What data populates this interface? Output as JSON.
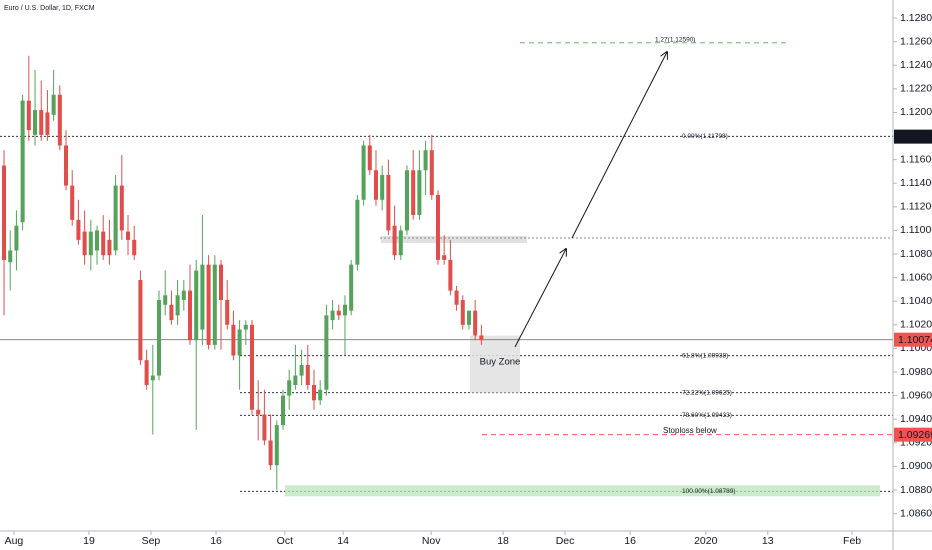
{
  "chart_data": {
    "type": "candlestick",
    "title": "Euro / U.S. Dollar, 1D, FXCM",
    "open": [
      1.1155,
      1.1073,
      1.1083,
      1.1107,
      1.121,
      1.1181,
      1.1202,
      1.12,
      1.1198,
      1.1215,
      1.1172,
      1.1138,
      1.1109,
      1.1099,
      1.1079,
      1.1083,
      1.1099,
      1.1092,
      1.1083,
      1.1138,
      1.1099,
      1.1092,
      1.1058,
      1.099,
      1.0973,
      1.0977,
      1.1037,
      1.1037,
      1.1028,
      1.1041,
      1.1049,
      1.1007,
      1.1016,
      1.1071,
      1.1003,
      1.1071,
      1.1041,
      1.102,
      1.0994,
      1.1016,
      1.102,
      1.0948,
      1.0944,
      1.0922,
      1.0901,
      1.0935,
      1.096,
      1.0969,
      1.0977,
      1.0986,
      1.0969,
      1.0956,
      1.0965,
      1.1024,
      1.1032,
      1.1028,
      1.1032,
      1.1071,
      1.1126,
      1.1172,
      1.1151,
      1.1126,
      1.1147,
      1.1104,
      1.1079,
      1.11,
      1.1151,
      1.1113,
      1.1151,
      1.1168,
      1.113,
      1.1079,
      1.1075,
      1.1049,
      1.1041,
      1.102,
      1.1032,
      1.1011
    ],
    "high": [
      1.1168,
      1.11,
      1.1117,
      1.1215,
      1.1248,
      1.1236,
      1.1227,
      1.1219,
      1.1236,
      1.1223,
      1.1185,
      1.1151,
      1.1126,
      1.1117,
      1.1109,
      1.1104,
      1.1113,
      1.1109,
      1.1147,
      1.1164,
      1.1113,
      1.1104,
      1.1066,
      1.0999,
      1.1003,
      1.1049,
      1.1066,
      1.1049,
      1.1058,
      1.1058,
      1.1071,
      1.1075,
      1.1113,
      1.1079,
      1.1079,
      1.1075,
      1.1058,
      1.1032,
      1.1024,
      1.1024,
      1.1024,
      1.0973,
      1.0965,
      1.0944,
      1.0939,
      1.0965,
      1.0982,
      1.1003,
      1.0999,
      1.1003,
      1.0982,
      1.0973,
      1.1037,
      1.1041,
      1.1037,
      1.1045,
      1.1075,
      1.113,
      1.1176,
      1.1181,
      1.1168,
      1.1155,
      1.116,
      1.1121,
      1.1104,
      1.1155,
      1.1168,
      1.1168,
      1.1176,
      1.1181,
      1.1134,
      1.1096,
      1.1092,
      1.1053,
      1.1045,
      1.1032,
      1.1041,
      1.102
    ],
    "low": [
      1.1028,
      1.1049,
      1.1066,
      1.11,
      1.1176,
      1.1172,
      1.1176,
      1.1176,
      1.1193,
      1.1168,
      1.1134,
      1.1104,
      1.1088,
      1.1071,
      1.1066,
      1.1071,
      1.1075,
      1.1071,
      1.1079,
      1.1092,
      1.1079,
      1.1075,
      1.0986,
      1.0965,
      1.0927,
      1.0973,
      1.1028,
      1.102,
      1.102,
      1.1032,
      1.1003,
      1.0931,
      1.1003,
      1.0999,
      1.0999,
      1.0999,
      1.1016,
      1.099,
      1.0965,
      1.1003,
      1.0944,
      1.0922,
      1.0918,
      1.0897,
      1.088,
      1.0931,
      1.0948,
      1.0965,
      1.0969,
      1.0965,
      1.0948,
      1.0952,
      1.096,
      1.1016,
      1.1024,
      1.0994,
      1.1028,
      1.1066,
      1.1121,
      1.1147,
      1.1121,
      1.1117,
      1.1096,
      1.1075,
      1.1075,
      1.1096,
      1.1109,
      1.1109,
      1.113,
      1.1126,
      1.1071,
      1.1071,
      1.1045,
      1.1032,
      1.1016,
      1.1016,
      1.1007,
      1.1003
    ],
    "close": [
      1.1075,
      1.1083,
      1.1104,
      1.121,
      1.1185,
      1.1202,
      1.1181,
      1.1181,
      1.1215,
      1.1172,
      1.1138,
      1.1109,
      1.1092,
      1.1079,
      1.1099,
      1.11,
      1.1079,
      1.1079,
      1.1138,
      1.11,
      1.1092,
      1.1079,
      1.099,
      1.0969,
      1.0977,
      1.1041,
      1.1045,
      1.1024,
      1.1045,
      1.1049,
      1.1007,
      1.1066,
      1.1071,
      1.1003,
      1.1071,
      1.1041,
      1.102,
      1.0994,
      1.1016,
      1.102,
      1.0948,
      1.0944,
      1.0922,
      1.0901,
      1.0935,
      1.096,
      1.0973,
      1.0977,
      1.0986,
      1.0969,
      1.0956,
      1.0965,
      1.1028,
      1.1032,
      1.1028,
      1.1037,
      1.1071,
      1.1126,
      1.1172,
      1.1151,
      1.1126,
      1.1147,
      1.11,
      1.1079,
      1.11,
      1.1151,
      1.1113,
      1.1151,
      1.1168,
      1.113,
      1.1075,
      1.1075,
      1.1049,
      1.1037,
      1.102,
      1.1032,
      1.1011,
      1.1007
    ],
    "up_color": "#53a35a",
    "down_color": "#e04e4b",
    "xlim": [
      -0.65,
      143.4
    ],
    "xticks": [
      {
        "value": 1.6,
        "label": "Aug"
      },
      {
        "value": 13.7,
        "label": "19"
      },
      {
        "value": 23.7,
        "label": "Sep"
      },
      {
        "value": 34.2,
        "label": "16"
      },
      {
        "value": 45.3,
        "label": "Oct"
      },
      {
        "value": 54.7,
        "label": "14"
      },
      {
        "value": 68.9,
        "label": "Nov"
      },
      {
        "value": 80.5,
        "label": "18"
      },
      {
        "value": 90.5,
        "label": "Dec"
      },
      {
        "value": 101,
        "label": "16"
      },
      {
        "value": 113.2,
        "label": "2020"
      },
      {
        "value": 123.2,
        "label": "13"
      },
      {
        "value": 136.8,
        "label": "Feb"
      }
    ],
    "ylim": [
      1.08461,
      1.12953
    ],
    "yticks": [
      {
        "value": 1.086,
        "label": "1.08600"
      },
      {
        "value": 1.088,
        "label": "1.08800"
      },
      {
        "value": 1.09,
        "label": "1.09000"
      },
      {
        "value": 1.092,
        "label": "1.09200"
      },
      {
        "value": 1.094,
        "label": "1.09400"
      },
      {
        "value": 1.096,
        "label": "1.09600"
      },
      {
        "value": 1.098,
        "label": "1.09800"
      },
      {
        "value": 1.1,
        "label": "1.10000"
      },
      {
        "value": 1.102,
        "label": "1.10200"
      },
      {
        "value": 1.104,
        "label": "1.10400"
      },
      {
        "value": 1.106,
        "label": "1.10600"
      },
      {
        "value": 1.108,
        "label": "1.10800"
      },
      {
        "value": 1.11,
        "label": "1.11000"
      },
      {
        "value": 1.112,
        "label": "1.11200"
      },
      {
        "value": 1.114,
        "label": "1.11400"
      },
      {
        "value": 1.116,
        "label": "1.11600"
      },
      {
        "value": 1.118,
        "label": "1.11800"
      },
      {
        "value": 1.12,
        "label": "1.12000"
      },
      {
        "value": 1.122,
        "label": "1.12200"
      },
      {
        "value": 1.124,
        "label": "1.12400"
      },
      {
        "value": 1.126,
        "label": "1.12600"
      },
      {
        "value": 1.128,
        "label": "1.12800"
      }
    ],
    "price_tags": [
      {
        "value": 1.11795,
        "label": "1.11795",
        "color": "#131722"
      },
      {
        "value": 1.10074,
        "label": "1.10074",
        "color": "#ef5350"
      },
      {
        "value": 1.09269,
        "label": "1.09269",
        "color": "#ef5350"
      }
    ],
    "fib_levels": [
      {
        "value": 1.1259,
        "label": "1.27(1.12590)",
        "color": "#4caf50"
      },
      {
        "value": 1.11798,
        "label": "0.00%(1.11798)",
        "color": "#131722"
      },
      {
        "value": 1.09938,
        "label": "61.8%(1.09938)",
        "color": "#131722"
      },
      {
        "value": 1.09625,
        "label": "72.22%(1.09625)",
        "color": "#131722"
      },
      {
        "value": 1.09433,
        "label": "78.60%(1.09433)",
        "color": "#131722"
      },
      {
        "value": 1.08789,
        "label": "100.00%(1.08789)",
        "color": "#131722"
      }
    ],
    "stoploss": {
      "value": 1.09269,
      "label": "Stoploss below",
      "color": "#ef5350"
    },
    "buy_zone": {
      "label": "Buy Zone"
    }
  }
}
